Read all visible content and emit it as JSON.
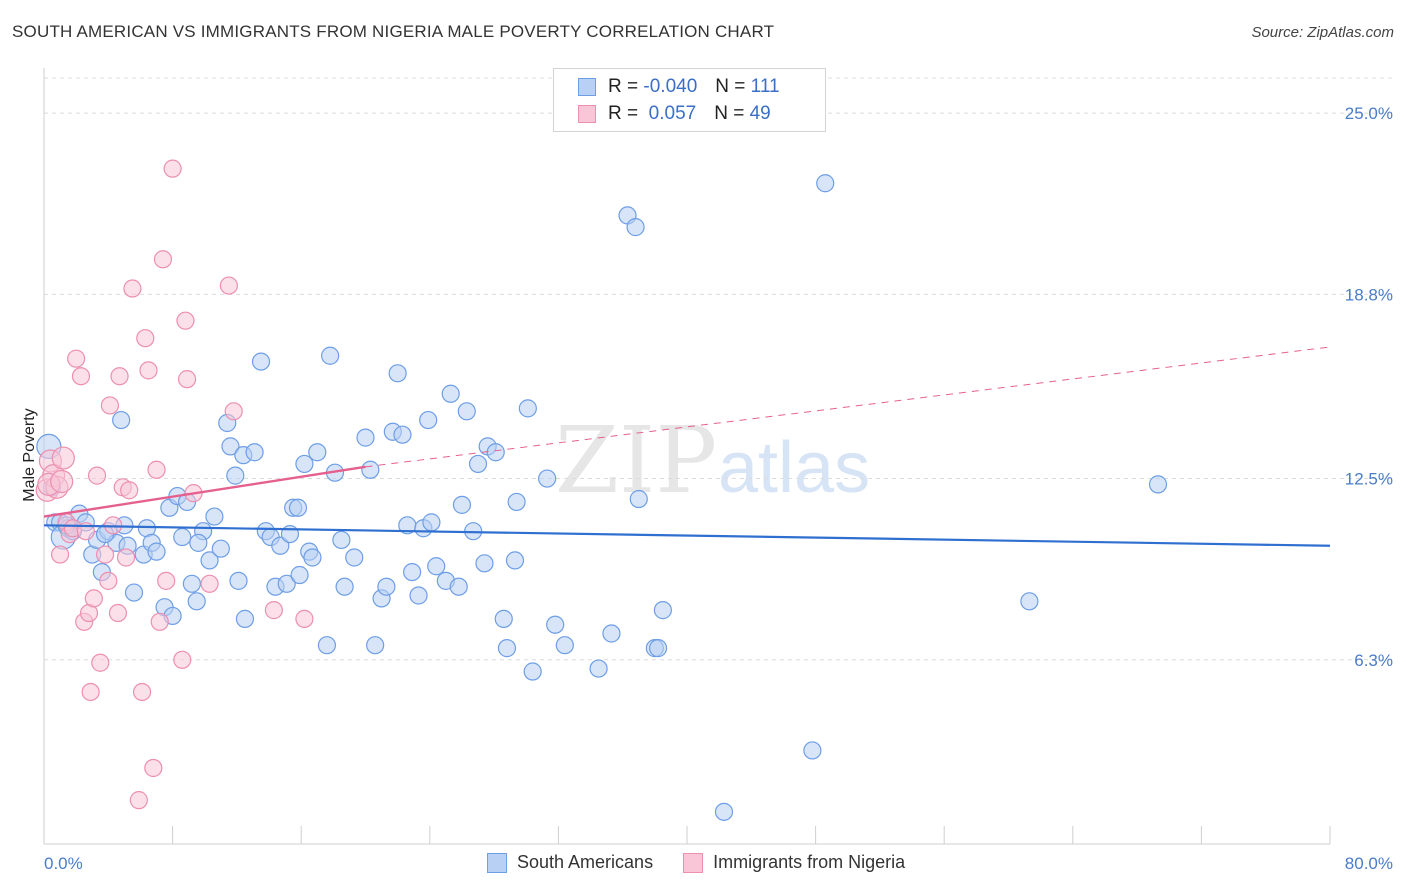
{
  "title": "SOUTH AMERICAN VS IMMIGRANTS FROM NIGERIA MALE POVERTY CORRELATION CHART",
  "source": "Source: ZipAtlas.com",
  "legend": {
    "rows": [
      {
        "r_label": "R =",
        "r_value": "-0.040",
        "n_label": "N =",
        "n_value": "111"
      },
      {
        "r_label": "R =",
        "r_value": " 0.057",
        "n_label": "N =",
        "n_value": "49"
      }
    ]
  },
  "bottom_legend": [
    "South Americans",
    "Immigrants from Nigeria"
  ],
  "colors": {
    "blue": "#6d9ee6",
    "blue_fill": "#b8d0f3",
    "blue_line": "#2f6fd0",
    "pink": "#ec8fb0",
    "pink_fill": "#f8c6d7",
    "pink_line": "#e5608e"
  },
  "chart_data": {
    "type": "scatter",
    "title": "SOUTH AMERICAN VS IMMIGRANTS FROM NIGERIA MALE POVERTY CORRELATION CHART",
    "xlabel": "",
    "ylabel": "Male Poverty",
    "xlim": [
      0,
      80
    ],
    "ylim": [
      0,
      26.2
    ],
    "x_tick_labels": [
      "0.0%",
      "80.0%"
    ],
    "y_ticks": [
      6.3,
      12.5,
      18.8,
      25.0
    ],
    "y_tick_labels": [
      "6.3%",
      "12.5%",
      "18.8%",
      "25.0%"
    ],
    "grid": "horizontal dashed",
    "watermark": "ZIPatlas",
    "series": [
      {
        "name": "South Americans",
        "color": "#6d9ee6",
        "trend": {
          "x": [
            0,
            80
          ],
          "y": [
            10.9,
            10.2
          ]
        },
        "points": [
          [
            0.3,
            13.6
          ],
          [
            0.5,
            12.2
          ],
          [
            0.7,
            11.0
          ],
          [
            1.0,
            11.0
          ],
          [
            1.2,
            10.5
          ],
          [
            1.5,
            10.8
          ],
          [
            1.8,
            10.7
          ],
          [
            2.2,
            11.3
          ],
          [
            2.6,
            11.0
          ],
          [
            3.0,
            9.9
          ],
          [
            3.3,
            10.4
          ],
          [
            3.6,
            9.3
          ],
          [
            4.0,
            10.7
          ],
          [
            4.5,
            10.3
          ],
          [
            4.8,
            14.5
          ],
          [
            5.2,
            10.2
          ],
          [
            5.6,
            8.6
          ],
          [
            6.2,
            9.9
          ],
          [
            6.4,
            10.8
          ],
          [
            6.7,
            10.3
          ],
          [
            7.5,
            8.1
          ],
          [
            7.8,
            11.5
          ],
          [
            8.0,
            7.8
          ],
          [
            8.3,
            11.9
          ],
          [
            8.6,
            10.5
          ],
          [
            8.9,
            11.7
          ],
          [
            9.2,
            8.9
          ],
          [
            9.5,
            8.3
          ],
          [
            9.9,
            10.7
          ],
          [
            10.3,
            9.7
          ],
          [
            10.6,
            11.2
          ],
          [
            11.0,
            10.1
          ],
          [
            11.4,
            14.4
          ],
          [
            11.6,
            13.6
          ],
          [
            11.9,
            12.6
          ],
          [
            12.1,
            9.0
          ],
          [
            12.4,
            13.3
          ],
          [
            12.5,
            7.7
          ],
          [
            13.1,
            13.4
          ],
          [
            13.5,
            16.5
          ],
          [
            13.8,
            10.7
          ],
          [
            14.1,
            10.5
          ],
          [
            14.4,
            8.8
          ],
          [
            14.7,
            10.2
          ],
          [
            15.1,
            8.9
          ],
          [
            15.3,
            10.6
          ],
          [
            15.5,
            11.5
          ],
          [
            15.8,
            11.5
          ],
          [
            15.9,
            9.2
          ],
          [
            16.2,
            13.0
          ],
          [
            16.5,
            10.0
          ],
          [
            16.7,
            9.8
          ],
          [
            17.0,
            13.4
          ],
          [
            17.6,
            6.8
          ],
          [
            17.8,
            16.7
          ],
          [
            18.1,
            12.7
          ],
          [
            18.5,
            10.4
          ],
          [
            18.7,
            8.8
          ],
          [
            19.3,
            9.8
          ],
          [
            20.0,
            13.9
          ],
          [
            20.3,
            12.8
          ],
          [
            20.6,
            6.8
          ],
          [
            21.0,
            8.4
          ],
          [
            21.3,
            8.8
          ],
          [
            21.7,
            14.1
          ],
          [
            22.0,
            16.1
          ],
          [
            22.3,
            14.0
          ],
          [
            22.6,
            10.9
          ],
          [
            22.9,
            9.3
          ],
          [
            23.3,
            8.5
          ],
          [
            23.6,
            10.8
          ],
          [
            23.9,
            14.5
          ],
          [
            24.1,
            11.0
          ],
          [
            24.4,
            9.5
          ],
          [
            25.0,
            9.0
          ],
          [
            25.3,
            15.4
          ],
          [
            25.8,
            8.8
          ],
          [
            26.0,
            11.6
          ],
          [
            26.3,
            14.8
          ],
          [
            26.7,
            10.7
          ],
          [
            27.0,
            13.0
          ],
          [
            27.4,
            9.6
          ],
          [
            27.6,
            13.6
          ],
          [
            28.1,
            13.4
          ],
          [
            28.6,
            7.7
          ],
          [
            28.8,
            6.7
          ],
          [
            29.3,
            9.7
          ],
          [
            29.4,
            11.7
          ],
          [
            30.1,
            14.9
          ],
          [
            30.4,
            5.9
          ],
          [
            31.3,
            12.5
          ],
          [
            31.8,
            7.5
          ],
          [
            32.4,
            6.8
          ],
          [
            34.5,
            6.0
          ],
          [
            35.3,
            7.2
          ],
          [
            36.3,
            21.5
          ],
          [
            36.8,
            21.1
          ],
          [
            37.0,
            11.8
          ],
          [
            38.0,
            6.7
          ],
          [
            38.2,
            6.7
          ],
          [
            38.5,
            8.0
          ],
          [
            42.3,
            1.1
          ],
          [
            47.8,
            3.2
          ],
          [
            48.6,
            22.6
          ],
          [
            61.3,
            8.3
          ],
          [
            69.3,
            12.3
          ],
          [
            3.8,
            10.6
          ],
          [
            5.0,
            10.9
          ],
          [
            7.0,
            10.0
          ],
          [
            9.6,
            10.3
          ],
          [
            1.4,
            10.9
          ]
        ]
      },
      {
        "name": "Immigrants from Nigeria",
        "color": "#ec8fb0",
        "trend": {
          "x": [
            0,
            20
          ],
          "y": [
            11.2,
            12.9
          ]
        },
        "trend_dashed": {
          "x": [
            20,
            80
          ],
          "y": [
            12.9,
            17.0
          ]
        },
        "points": [
          [
            0.2,
            12.1
          ],
          [
            0.4,
            13.1
          ],
          [
            0.6,
            12.6
          ],
          [
            0.8,
            12.2
          ],
          [
            1.0,
            9.9
          ],
          [
            1.2,
            13.2
          ],
          [
            1.4,
            11.0
          ],
          [
            1.6,
            10.6
          ],
          [
            1.8,
            10.8
          ],
          [
            2.0,
            16.6
          ],
          [
            2.3,
            16.0
          ],
          [
            2.5,
            7.6
          ],
          [
            2.8,
            7.9
          ],
          [
            2.9,
            5.2
          ],
          [
            3.1,
            8.4
          ],
          [
            3.3,
            12.6
          ],
          [
            3.5,
            6.2
          ],
          [
            3.8,
            9.9
          ],
          [
            4.0,
            9.0
          ],
          [
            4.1,
            15.0
          ],
          [
            4.3,
            10.9
          ],
          [
            4.6,
            7.9
          ],
          [
            4.7,
            16.0
          ],
          [
            4.9,
            12.2
          ],
          [
            5.1,
            9.8
          ],
          [
            5.3,
            12.1
          ],
          [
            5.5,
            19.0
          ],
          [
            5.9,
            1.5
          ],
          [
            6.1,
            5.2
          ],
          [
            6.3,
            17.3
          ],
          [
            6.5,
            16.2
          ],
          [
            6.8,
            2.6
          ],
          [
            7.0,
            12.8
          ],
          [
            7.2,
            7.6
          ],
          [
            7.4,
            20.0
          ],
          [
            7.6,
            9.0
          ],
          [
            8.0,
            23.1
          ],
          [
            8.6,
            6.3
          ],
          [
            8.8,
            17.9
          ],
          [
            8.9,
            15.9
          ],
          [
            9.3,
            12.0
          ],
          [
            10.3,
            8.9
          ],
          [
            11.5,
            19.1
          ],
          [
            11.8,
            14.8
          ],
          [
            14.3,
            8.0
          ],
          [
            16.2,
            7.7
          ],
          [
            0.3,
            12.3
          ],
          [
            1.1,
            12.4
          ],
          [
            2.6,
            10.7
          ]
        ]
      }
    ]
  }
}
